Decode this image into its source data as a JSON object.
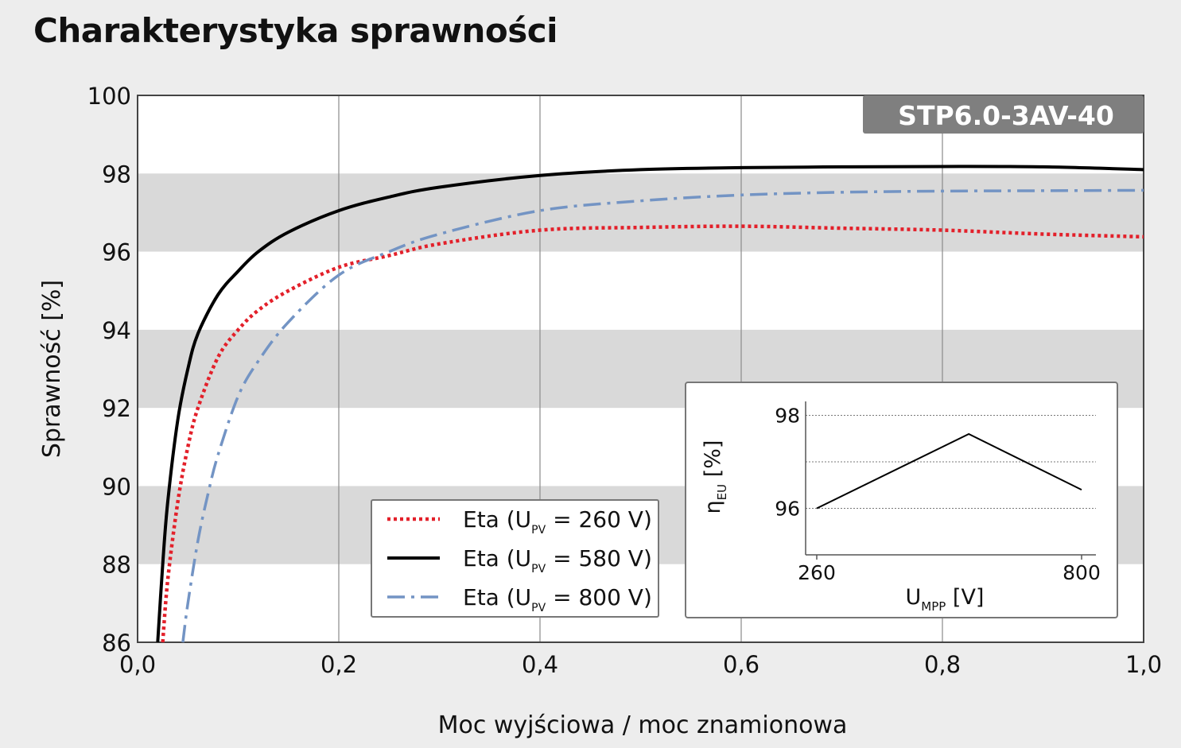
{
  "title": "Charakterystyka sprawności",
  "chart_data": {
    "type": "line",
    "title": "Charakterystyka sprawności",
    "model_label": "STP6.0-3AV-40",
    "xlabel": "Moc wyjściowa / moc znamionowa",
    "ylabel": "Sprawność [%]",
    "xlim": [
      0.0,
      1.0
    ],
    "ylim": [
      86,
      100
    ],
    "xticks": [
      0.0,
      0.2,
      0.4,
      0.6,
      0.8,
      1.0
    ],
    "xtick_labels": [
      "0,0",
      "0,2",
      "0,4",
      "0,6",
      "0,8",
      "1,0"
    ],
    "yticks": [
      86,
      88,
      90,
      92,
      94,
      96,
      98,
      100
    ],
    "ytick_labels": [
      "86",
      "88",
      "90",
      "92",
      "94",
      "96",
      "98",
      "100"
    ],
    "shaded_bands": [
      [
        88,
        90
      ],
      [
        92,
        94
      ],
      [
        96,
        98
      ]
    ],
    "grid": "vertical",
    "legend_position": "bottom-center",
    "series": [
      {
        "name": "Eta (UPV = 260 V)",
        "legend_main": "Eta (U",
        "legend_sub": "PV",
        "legend_tail": " = 260 V)",
        "color": "#e3202a",
        "dash": "dotted",
        "x": [
          0.025,
          0.03,
          0.04,
          0.05,
          0.06,
          0.08,
          0.1,
          0.12,
          0.15,
          0.2,
          0.25,
          0.3,
          0.4,
          0.5,
          0.6,
          0.7,
          0.8,
          0.9,
          1.0
        ],
        "y": [
          86.0,
          87.6,
          89.6,
          91.0,
          92.0,
          93.3,
          94.0,
          94.5,
          95.0,
          95.6,
          95.9,
          96.2,
          96.55,
          96.62,
          96.65,
          96.6,
          96.55,
          96.45,
          96.38
        ]
      },
      {
        "name": "Eta (UPV = 580 V)",
        "legend_main": "Eta (U",
        "legend_sub": "PV",
        "legend_tail": " = 580 V)",
        "color": "#000000",
        "dash": "solid",
        "x": [
          0.02,
          0.025,
          0.03,
          0.04,
          0.05,
          0.06,
          0.08,
          0.1,
          0.12,
          0.15,
          0.2,
          0.25,
          0.3,
          0.4,
          0.5,
          0.6,
          0.7,
          0.8,
          0.9,
          1.0
        ],
        "y": [
          86.0,
          88.0,
          89.6,
          91.7,
          93.0,
          93.9,
          94.9,
          95.5,
          96.0,
          96.5,
          97.05,
          97.4,
          97.65,
          97.95,
          98.1,
          98.15,
          98.17,
          98.18,
          98.17,
          98.1
        ]
      },
      {
        "name": "Eta (UPV = 800 V)",
        "legend_main": "Eta (U",
        "legend_sub": "PV",
        "legend_tail": " = 800 V)",
        "color": "#7394c4",
        "dash": "dashdot",
        "x": [
          0.045,
          0.05,
          0.06,
          0.07,
          0.08,
          0.1,
          0.12,
          0.15,
          0.2,
          0.25,
          0.3,
          0.4,
          0.5,
          0.6,
          0.7,
          0.8,
          0.9,
          1.0
        ],
        "y": [
          86.0,
          87.0,
          88.6,
          89.8,
          90.8,
          92.3,
          93.2,
          94.2,
          95.4,
          96.0,
          96.45,
          97.05,
          97.3,
          97.45,
          97.52,
          97.55,
          97.56,
          97.57
        ]
      }
    ],
    "inset": {
      "type": "line",
      "ylabel_main": "η",
      "ylabel_sub": "EU",
      "ylabel_tail": " [%]",
      "xlabel_main": "U",
      "xlabel_sub": "MPP",
      "xlabel_tail": " [V]",
      "xlim": [
        260,
        800
      ],
      "ylim": [
        95,
        98.3
      ],
      "xticks": [
        260,
        800
      ],
      "xtick_labels": [
        "260",
        "800"
      ],
      "yticks": [
        96,
        98
      ],
      "ytick_labels": [
        "96",
        "98"
      ],
      "dotted_gridlines": [
        96,
        97,
        98
      ],
      "x": [
        260,
        570,
        800
      ],
      "y": [
        96.0,
        97.6,
        96.4
      ],
      "color": "#000000"
    }
  }
}
